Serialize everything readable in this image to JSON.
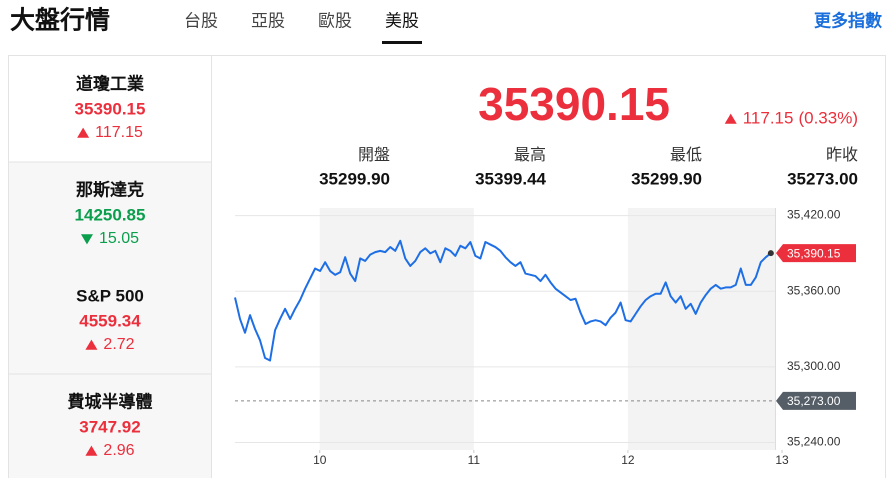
{
  "header": {
    "title": "大盤行情",
    "tabs": [
      "台股",
      "亞股",
      "歐股",
      "美股"
    ],
    "active_tab": 3,
    "more_link": "更多指數"
  },
  "indices": [
    {
      "name": "道瓊工業",
      "value": "35390.15",
      "change": "117.15",
      "direction": "up"
    },
    {
      "name": "那斯達克",
      "value": "14250.85",
      "change": "15.05",
      "direction": "down"
    },
    {
      "name": "S&P 500",
      "value": "4559.34",
      "change": "2.72",
      "direction": "up"
    },
    {
      "name": "費城半導體",
      "value": "3747.92",
      "change": "2.96",
      "direction": "up"
    }
  ],
  "quote": {
    "price": "35390.15",
    "change": "117.15",
    "change_pct": "(0.33%)",
    "direction": "up",
    "stats": [
      {
        "label": "開盤",
        "value": "35299.90"
      },
      {
        "label": "最高",
        "value": "35399.44"
      },
      {
        "label": "最低",
        "value": "35299.90"
      },
      {
        "label": "昨收",
        "value": "35273.00"
      }
    ]
  },
  "chart_data": {
    "type": "line",
    "color": "#1e6fe6",
    "x": [
      9.45,
      9.4825,
      9.515,
      9.5475,
      9.58,
      9.6125,
      9.645,
      9.6775,
      9.71,
      9.7425,
      9.775,
      9.8075,
      9.84,
      9.8725,
      9.905,
      9.9375,
      9.97,
      10.0025,
      10.035,
      10.0675,
      10.1,
      10.1325,
      10.165,
      10.1975,
      10.23,
      10.2625,
      10.295,
      10.3275,
      10.36,
      10.3925,
      10.425,
      10.4575,
      10.49,
      10.5225,
      10.555,
      10.5875,
      10.62,
      10.6525,
      10.685,
      10.7175,
      10.75,
      10.7825,
      10.815,
      10.8475,
      10.88,
      10.9125,
      10.945,
      10.9775,
      11.01,
      11.0425,
      11.075,
      11.1075,
      11.14,
      11.1725,
      11.205,
      11.2375,
      11.27,
      11.3025,
      11.335,
      11.3675,
      11.4,
      11.4325,
      11.465,
      11.4975,
      11.53,
      11.5625,
      11.595,
      11.6275,
      11.66,
      11.6925,
      11.725,
      11.7575,
      11.79,
      11.8225,
      11.855,
      11.8875,
      11.92,
      11.9525,
      11.985,
      12.0175,
      12.05,
      12.0825,
      12.115,
      12.1475,
      12.18,
      12.2125,
      12.245,
      12.2775,
      12.31,
      12.3425,
      12.375,
      12.4075,
      12.44,
      12.4725,
      12.505,
      12.5375,
      12.57,
      12.6025,
      12.635,
      12.6675,
      12.7,
      12.7325,
      12.765,
      12.7975,
      12.83,
      12.8625,
      12.895,
      12.9275
    ],
    "values": [
      35355,
      35338,
      35327,
      35341,
      35330,
      35321,
      35307,
      35305,
      35329,
      35338,
      35346,
      35338,
      35346,
      35353,
      35362,
      35370,
      35378,
      35376,
      35383,
      35376,
      35373,
      35375,
      35387,
      35374,
      35368,
      35386,
      35384,
      35389,
      35391,
      35392,
      35391,
      35395,
      35392,
      35400,
      35386,
      35380,
      35384,
      35391,
      35394,
      35390,
      35392,
      35383,
      35394,
      35392,
      35388,
      35396,
      35394,
      35399,
      35388,
      35386,
      35399,
      35397,
      35395,
      35392,
      35387,
      35383,
      35380,
      35383,
      35374,
      35373,
      35372,
      35368,
      35373,
      35367,
      35362,
      35359,
      35356,
      35353,
      35354,
      35343,
      35334,
      35336,
      35337,
      35336,
      35333,
      35339,
      35343,
      35351,
      35337,
      35336,
      35342,
      35348,
      35353,
      35356,
      35358,
      35358,
      35367,
      35356,
      35351,
      35356,
      35346,
      35350,
      35342,
      35351,
      35357,
      35362,
      35365,
      35362,
      35363,
      35363,
      35365,
      35378,
      35365,
      35365,
      35371,
      35383,
      35387,
      35390.15
    ],
    "end_label": "35,390.15",
    "xlim": [
      9.45,
      13
    ],
    "xticks": [
      10,
      11,
      12,
      13
    ],
    "ylim": [
      35234,
      35426
    ],
    "yticks": [
      {
        "value": 35240,
        "label": "35,240.00"
      },
      {
        "value": 35300,
        "label": "35,300.00"
      },
      {
        "value": 35360,
        "label": "35,360.00"
      },
      {
        "value": 35420,
        "label": "35,420.00"
      }
    ],
    "grid": true,
    "shaded": [
      [
        10,
        11
      ],
      [
        12,
        13
      ]
    ],
    "reference_line": {
      "value": 35273,
      "label": "35,273.00"
    }
  }
}
